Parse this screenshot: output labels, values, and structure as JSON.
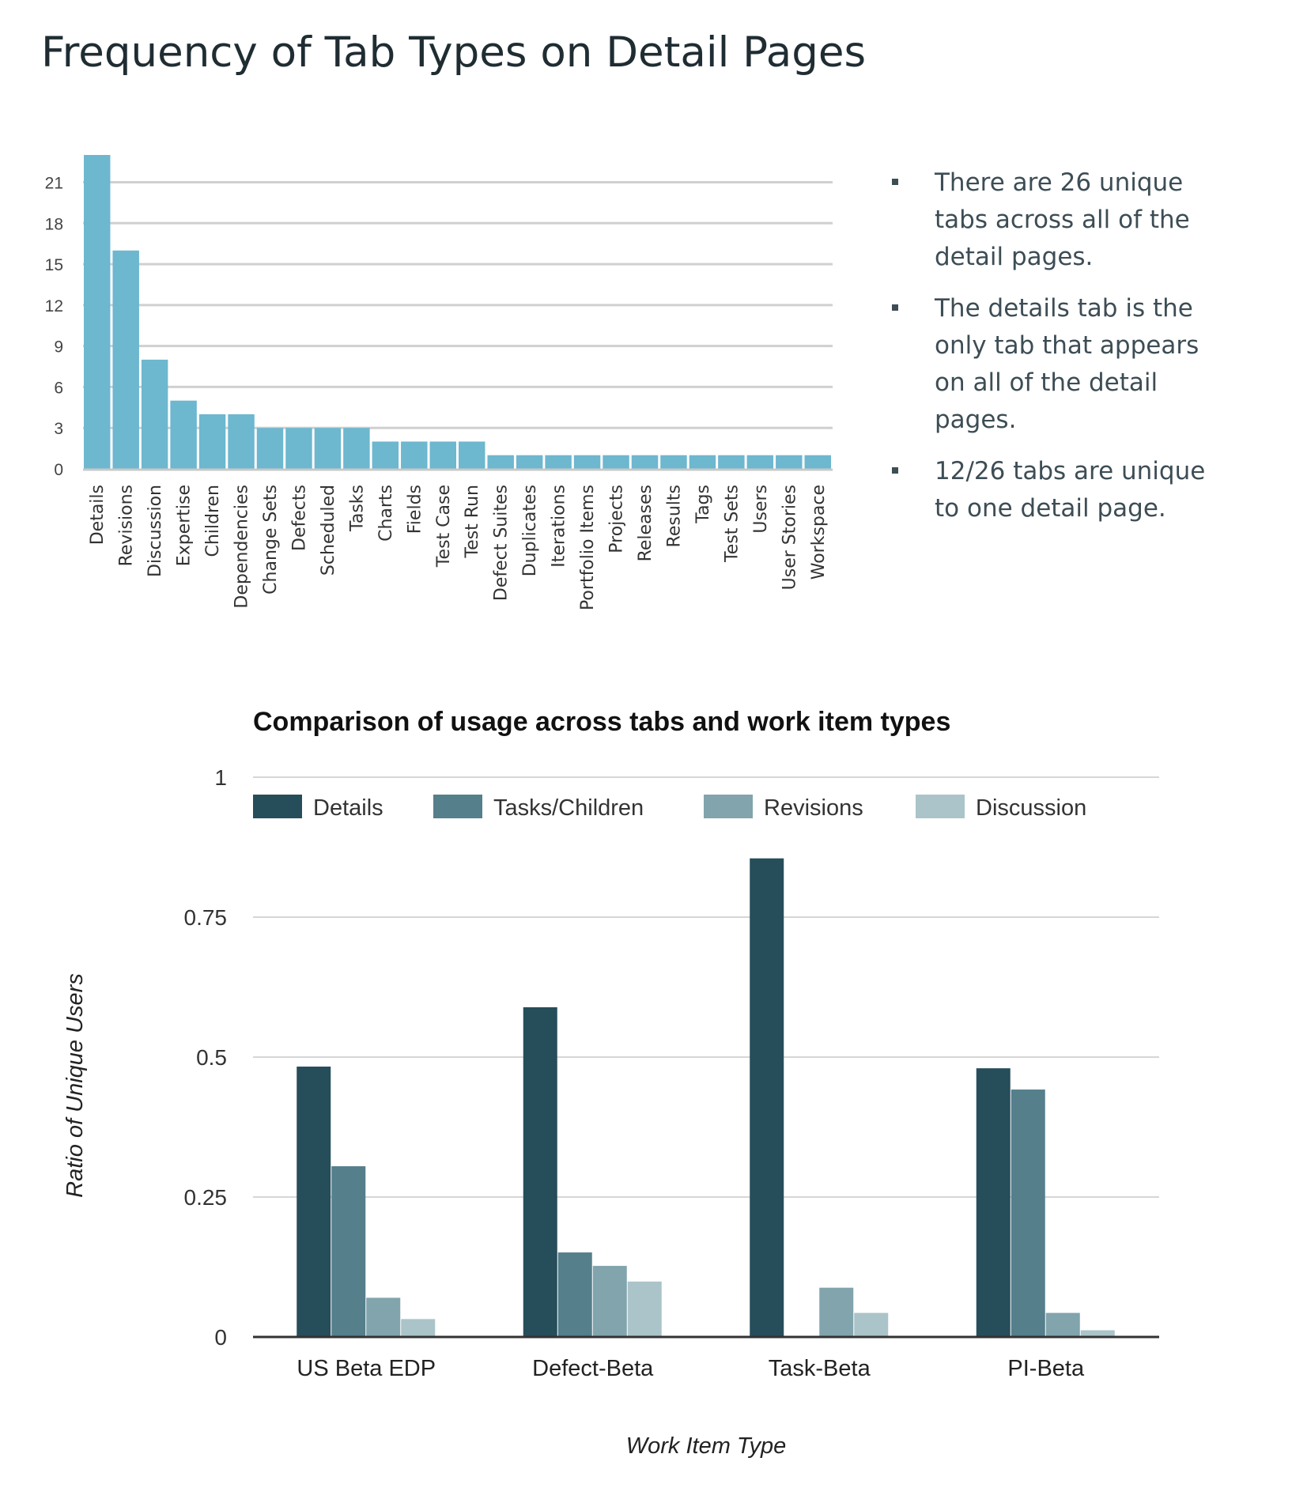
{
  "page": {
    "title": "Frequency of Tab Types on Detail Pages"
  },
  "bullets": [
    "There are 26 unique tabs across all of the detail pages.",
    "The details tab is the only tab that appears on all of the detail pages.",
    "12/26 tabs are unique to one detail page."
  ],
  "chart_data": [
    {
      "type": "bar",
      "title": "",
      "categories": [
        "Details",
        "Revisions",
        "Discussion",
        "Expertise",
        "Children",
        "Dependencies",
        "Change Sets",
        "Defects",
        "Scheduled",
        "Tasks",
        "Charts",
        "Fields",
        "Test Case",
        "Test Run",
        "Defect Suites",
        "Duplicates",
        "Iterations",
        "Portfolio Items",
        "Projects",
        "Releases",
        "Results",
        "Tags",
        "Test Sets",
        "Users",
        "User Stories",
        "Workspace"
      ],
      "values": [
        23,
        16,
        8,
        5,
        4,
        4,
        3,
        3,
        3,
        3,
        2,
        2,
        2,
        2,
        1,
        1,
        1,
        1,
        1,
        1,
        1,
        1,
        1,
        1,
        1,
        1
      ],
      "yticks": [
        "0",
        "3",
        "6",
        "9",
        "12",
        "15",
        "18",
        "21"
      ],
      "ylim": [
        0,
        23
      ],
      "grid": true,
      "color": "#6db7cf"
    },
    {
      "type": "bar",
      "title": "Comparison of usage across tabs and work item types",
      "xlabel": "Work Item Type",
      "ylabel": "Ratio of Unique Users",
      "categories": [
        "US Beta EDP",
        "Defect-Beta",
        "Task-Beta",
        "PI-Beta"
      ],
      "series": [
        {
          "name": "Details",
          "color": "#264d5a",
          "values": [
            0.483,
            0.589,
            0.855,
            0.48
          ]
        },
        {
          "name": "Tasks/Children",
          "color": "#547f8b",
          "values": [
            0.305,
            0.151,
            0,
            0.442
          ]
        },
        {
          "name": "Revisions",
          "color": "#81a4ad",
          "values": [
            0.07,
            0.127,
            0.088,
            0.043
          ]
        },
        {
          "name": "Discussion",
          "color": "#abc4c9",
          "values": [
            0.032,
            0.099,
            0.043,
            0.012
          ]
        }
      ],
      "yticks": [
        "0",
        "0.25",
        "0.5",
        "0.75",
        "1"
      ],
      "ylim": [
        0,
        1
      ],
      "grid": true,
      "legend": "top"
    }
  ]
}
